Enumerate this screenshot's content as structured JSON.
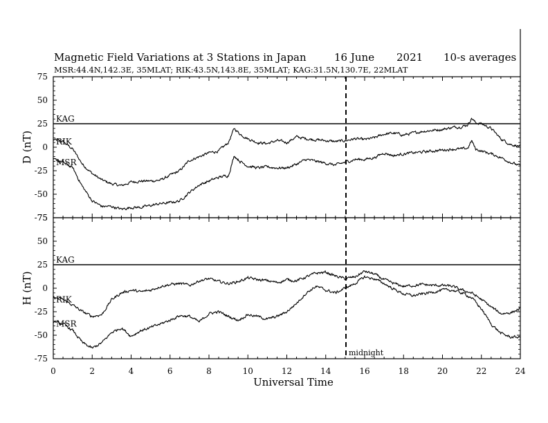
{
  "header": {
    "title": "Magnetic Field Variations at 3 Stations in Japan",
    "date": "16 June",
    "year": "2021",
    "averaging": "10-s averages",
    "subtitle": "MSR:44.4N,142.3E, 35MLAT;  RIK:43.5N,143.8E, 35MLAT;  KAG:31.5N,130.7E, 22MLAT"
  },
  "chart_data": [
    {
      "type": "line",
      "panel": "D",
      "ylabel": "D (nT)",
      "ylim": [
        -75,
        75
      ],
      "yticks": [
        "75",
        "50",
        "25",
        "0",
        "-25",
        "-50",
        "-75"
      ],
      "yticks_values": [
        75,
        50,
        25,
        0,
        -25,
        -50,
        -75
      ],
      "xlim": [
        0,
        24
      ],
      "xticks": [
        "0",
        "2",
        "4",
        "6",
        "8",
        "10",
        "12",
        "14",
        "16",
        "18",
        "20",
        "22",
        "24"
      ],
      "series": [
        {
          "name": "KAG",
          "x": [
            0,
            24
          ],
          "values": [
            25,
            25
          ]
        },
        {
          "name": "RIK",
          "x": [
            0,
            0.5,
            1,
            1.5,
            2,
            2.5,
            3,
            3.5,
            4,
            4.5,
            5,
            5.5,
            6,
            6.5,
            7,
            7.5,
            8,
            8.5,
            9,
            9.3,
            9.6,
            10,
            10.5,
            11,
            11.5,
            12,
            12.5,
            13,
            13.5,
            14,
            14.5,
            15,
            15.5,
            16,
            16.5,
            17,
            17.5,
            18,
            18.5,
            19,
            19.5,
            20,
            20.5,
            21,
            21.3,
            21.5,
            21.7,
            22,
            22.5,
            23,
            23.5,
            24
          ],
          "values": [
            8,
            6,
            -2,
            -18,
            -28,
            -35,
            -39,
            -41,
            -37,
            -36,
            -36,
            -35,
            -30,
            -25,
            -14,
            -10,
            -6,
            -4,
            5,
            20,
            14,
            9,
            5,
            4,
            7,
            5,
            11,
            9,
            8,
            7,
            6,
            7,
            9,
            8,
            10,
            14,
            15,
            13,
            15,
            17,
            18,
            19,
            21,
            22,
            24,
            31,
            26,
            25,
            20,
            9,
            3,
            1
          ]
        },
        {
          "name": "MSR",
          "x": [
            0,
            0.5,
            1,
            1.5,
            2,
            2.5,
            3,
            3.5,
            4,
            4.5,
            5,
            5.5,
            6,
            6.5,
            7,
            7.5,
            8,
            8.5,
            9,
            9.3,
            9.6,
            10,
            10.5,
            11,
            11.5,
            12,
            12.5,
            13,
            13.5,
            14,
            14.5,
            15,
            15.5,
            16,
            16.5,
            17,
            17.5,
            18,
            18.5,
            19,
            19.5,
            20,
            20.5,
            21,
            21.3,
            21.5,
            21.7,
            22,
            22.5,
            23,
            23.5,
            24
          ],
          "values": [
            -13,
            -16,
            -22,
            -42,
            -57,
            -63,
            -63,
            -66,
            -64,
            -64,
            -62,
            -60,
            -59,
            -57,
            -48,
            -40,
            -36,
            -32,
            -30,
            -9,
            -15,
            -20,
            -22,
            -21,
            -22,
            -22,
            -18,
            -13,
            -15,
            -17,
            -19,
            -16,
            -13,
            -13,
            -11,
            -6,
            -9,
            -7,
            -6,
            -5,
            -4,
            -3,
            -2,
            -2,
            -1,
            7,
            -2,
            -4,
            -7,
            -11,
            -16,
            -20
          ]
        }
      ]
    },
    {
      "type": "line",
      "panel": "H",
      "ylabel": "H (nT)",
      "ylim": [
        -75,
        75
      ],
      "yticks": [
        "75",
        "50",
        "25",
        "0",
        "-25",
        "-50",
        "-75"
      ],
      "yticks_values": [
        75,
        50,
        25,
        0,
        -25,
        -50,
        -75
      ],
      "xlim": [
        0,
        24
      ],
      "xticks": [
        "0",
        "2",
        "4",
        "6",
        "8",
        "10",
        "12",
        "14",
        "16",
        "18",
        "20",
        "22",
        "24"
      ],
      "xlabel": "Universal Time",
      "annotations": [
        {
          "text": "midnight",
          "x": 15
        }
      ],
      "series": [
        {
          "name": "KAG",
          "x": [
            0,
            24
          ],
          "values": [
            25,
            25
          ]
        },
        {
          "name": "RIK",
          "x": [
            0,
            0.5,
            1,
            1.5,
            2,
            2.5,
            3,
            3.5,
            4,
            4.5,
            5,
            5.5,
            6,
            6.5,
            7,
            7.5,
            8,
            8.5,
            9,
            9.5,
            10,
            10.5,
            11,
            11.5,
            12,
            12.5,
            13,
            13.5,
            14,
            14.5,
            15,
            15.5,
            16,
            16.5,
            17,
            17.5,
            18,
            18.5,
            19,
            19.5,
            20,
            20.5,
            21,
            21.5,
            22,
            22.5,
            23,
            23.5,
            24
          ],
          "values": [
            -10,
            -12,
            -18,
            -25,
            -30,
            -28,
            -12,
            -5,
            -2,
            -4,
            -2,
            2,
            4,
            5,
            3,
            8,
            10,
            7,
            5,
            7,
            11,
            9,
            8,
            6,
            9,
            8,
            12,
            16,
            17,
            13,
            10,
            12,
            18,
            15,
            9,
            5,
            2,
            3,
            4,
            3,
            3,
            2,
            -2,
            -5,
            -12,
            -20,
            -27,
            -26,
            -22
          ]
        },
        {
          "name": "MSR",
          "x": [
            0,
            0.5,
            1,
            1.5,
            2,
            2.5,
            3,
            3.5,
            4,
            4.5,
            5,
            5.5,
            6,
            6.5,
            7,
            7.5,
            8,
            8.5,
            9,
            9.5,
            10,
            10.5,
            11,
            11.5,
            12,
            12.5,
            13,
            13.5,
            14,
            14.5,
            15,
            15.5,
            16,
            16.5,
            17,
            17.5,
            18,
            18.5,
            19,
            19.5,
            20,
            20.5,
            21,
            21.5,
            22,
            22.5,
            23,
            23.5,
            24
          ],
          "values": [
            -35,
            -38,
            -45,
            -58,
            -64,
            -58,
            -47,
            -42,
            -51,
            -45,
            -42,
            -38,
            -34,
            -29,
            -30,
            -36,
            -27,
            -25,
            -30,
            -34,
            -28,
            -30,
            -33,
            -30,
            -25,
            -16,
            -5,
            2,
            -2,
            -5,
            0,
            5,
            12,
            10,
            5,
            -1,
            -6,
            -8,
            -6,
            -4,
            -2,
            -2,
            -5,
            -10,
            -22,
            -38,
            -48,
            -52,
            -52
          ]
        }
      ]
    }
  ]
}
